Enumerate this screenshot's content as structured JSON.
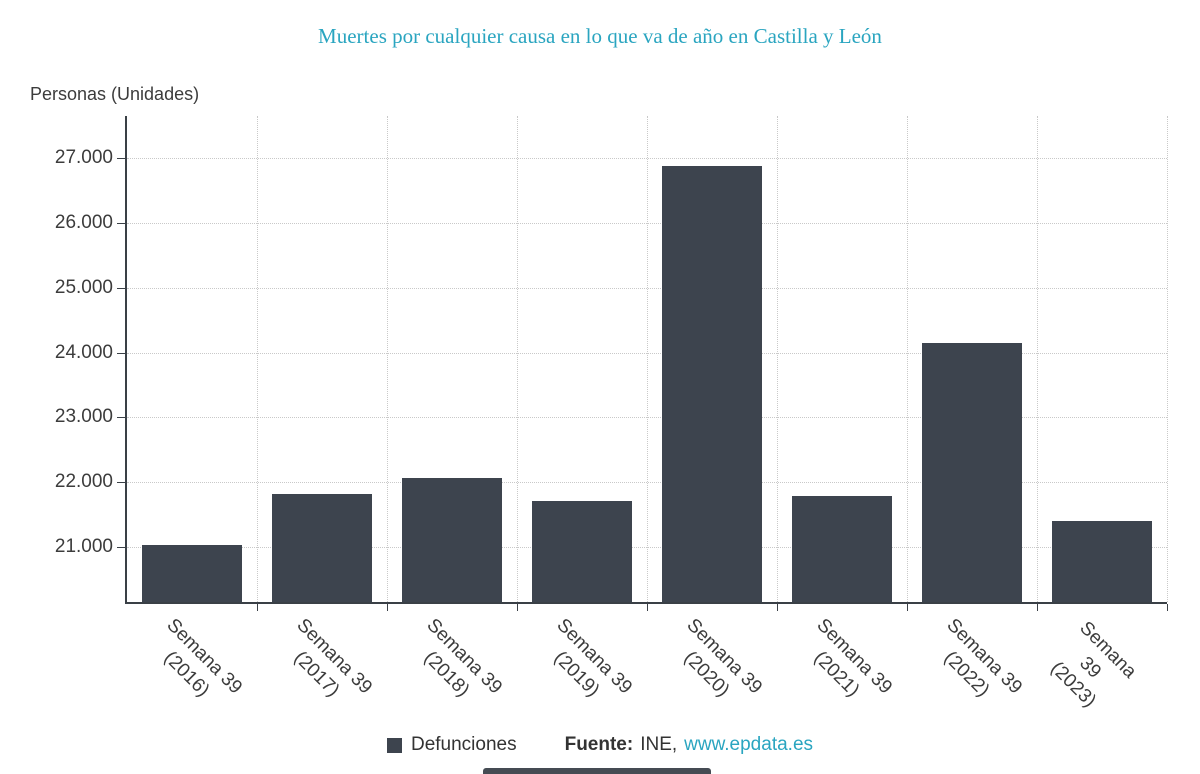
{
  "title": "Muertes por cualquier causa en lo que va de año en Castilla y León",
  "y_axis_title": "Personas (Unidades)",
  "legend": {
    "series_label": "Defunciones",
    "source_label": "Fuente:",
    "source_name": "INE,",
    "source_link": "www.epdata.es"
  },
  "colors": {
    "bar": "#3d444e",
    "accent": "#2aa5c0",
    "axis": "#3a4046",
    "grid": "#c9c9c9"
  },
  "chart_data": {
    "type": "bar",
    "title": "Muertes por cualquier causa en lo que va de año en Castilla y León",
    "xlabel": "",
    "ylabel": "Personas (Unidades)",
    "categories": [
      "Semana 39 (2016)",
      "Semana 39 (2017)",
      "Semana 39 (2018)",
      "Semana 39 (2019)",
      "Semana 39 (2020)",
      "Semana 39 (2021)",
      "Semana 39 (2022)",
      "Semana 39 (2023)"
    ],
    "series": [
      {
        "name": "Defunciones",
        "values": [
          21030,
          21810,
          22070,
          21710,
          26880,
          21780,
          24150,
          21400
        ]
      }
    ],
    "yticks": [
      21000,
      22000,
      23000,
      24000,
      25000,
      26000,
      27000
    ],
    "ytick_labels": [
      "21.000",
      "22.000",
      "23.000",
      "24.000",
      "25.000",
      "26.000",
      "27.000"
    ],
    "ylim": [
      20150,
      27650
    ],
    "grid": true,
    "legend_position": "bottom",
    "source": "Fuente: INE, www.epdata.es"
  }
}
